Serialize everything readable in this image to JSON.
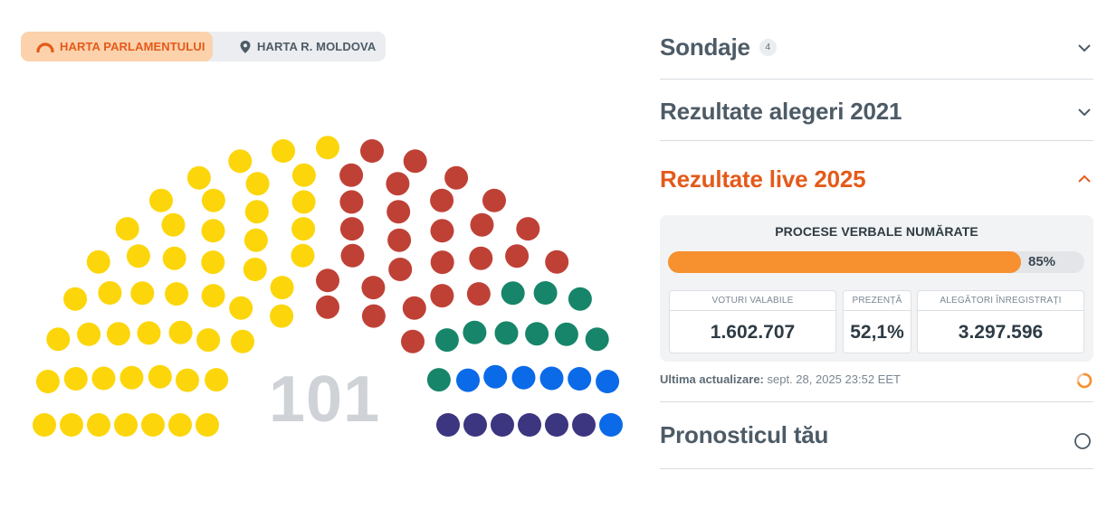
{
  "tabs": {
    "parliament_label": "HARTA PARLAMENTULUI",
    "map_label": "HARTA R. MOLDOVA"
  },
  "hemicycle": {
    "total_seats": "101",
    "colors": {
      "yellow": "#fcd60a",
      "red": "#bf4136",
      "green": "#17856a",
      "blue": "#0a6ae8",
      "navy": "#3c3580"
    },
    "seats_by_color": {
      "yellow": 50,
      "red": 28,
      "green": 10,
      "blue": 7,
      "navy": 6
    }
  },
  "accordion": {
    "polls": {
      "title": "Sondaje",
      "count": "4"
    },
    "results2021": {
      "title": "Rezultate alegeri 2021"
    },
    "live": {
      "title": "Rezultate live 2025",
      "counted_title": "PROCESE VERBALE NUMĂRATE",
      "progress_percent": 85,
      "progress_label": "85%",
      "stats": [
        {
          "label": "VOTURI VALABILE",
          "value": "1.602.707"
        },
        {
          "label": "PREZENȚĂ",
          "value": "52,1%"
        },
        {
          "label": "ALEGĂTORI ÎNREGISTRAȚI",
          "value": "3.297.596"
        }
      ],
      "update_label": "Ultima actualizare:",
      "update_time": "sept. 28, 2025 23:52 EET"
    },
    "forecast": {
      "title": "Pronosticul tău"
    }
  },
  "colors": {
    "accent": "#e45a1a",
    "progress": "#f7902f"
  },
  "icons": {
    "parliament_tab": "hemicycle-icon",
    "map_tab": "map-pin-icon",
    "polls": "chevron-down-icon",
    "results2021": "chevron-down-icon",
    "live": "chevron-up-icon",
    "forecast": "circle-icon",
    "update": "loading-spinner-icon"
  }
}
